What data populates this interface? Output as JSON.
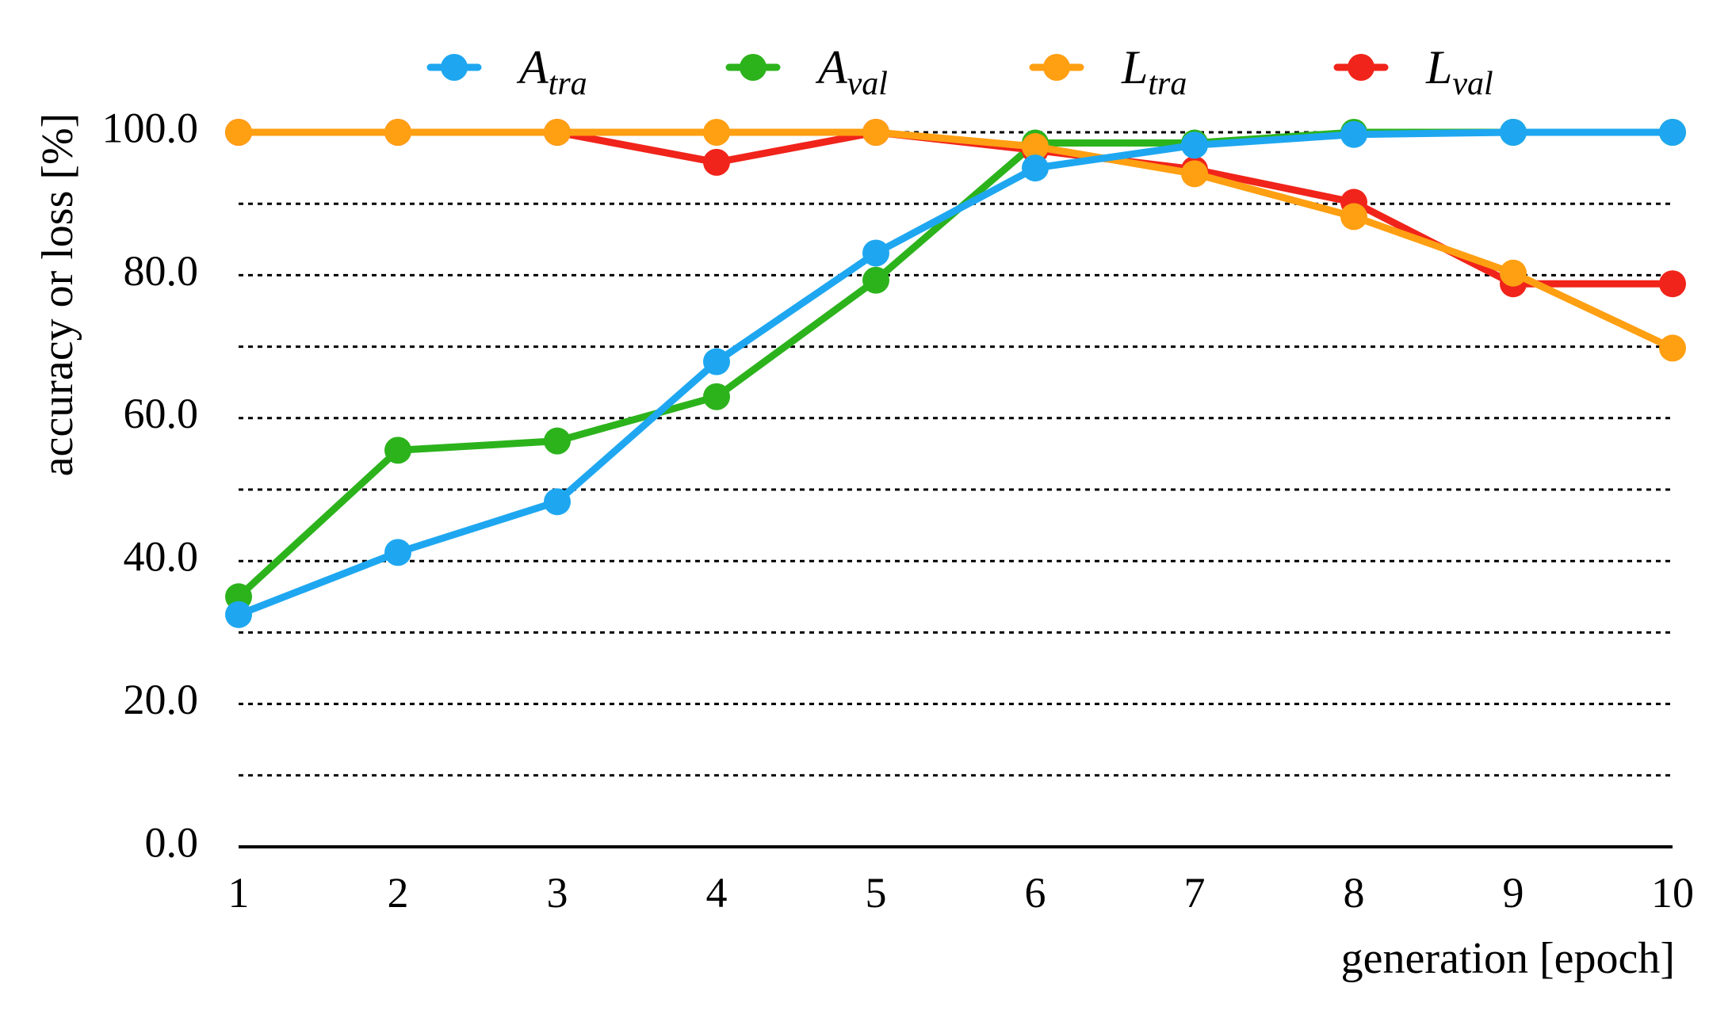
{
  "colors": {
    "A_tra": "#1EA7F0",
    "A_val": "#2CB31C",
    "L_tra": "#FF9F12",
    "L_val": "#F0241A"
  },
  "chart_data": {
    "type": "line",
    "title": "",
    "xlabel": "generation [epoch]",
    "ylabel": "accuracy or loss [%]",
    "categories": [
      "1",
      "2",
      "3",
      "4",
      "5",
      "6",
      "7",
      "8",
      "9",
      "10"
    ],
    "x": [
      1,
      2,
      3,
      4,
      5,
      6,
      7,
      8,
      9,
      10
    ],
    "ylim": [
      0,
      100
    ],
    "yticks": [
      0,
      20,
      40,
      60,
      80,
      100
    ],
    "ytick_labels": [
      "0.0",
      "20.0",
      "40.0",
      "60.0",
      "80.0",
      "100.0"
    ],
    "grid": true,
    "legend_position": "top",
    "series": [
      {
        "key": "A_val",
        "name_main": "A",
        "name_sub": "val",
        "values": [
          35.0,
          55.5,
          56.8,
          63.0,
          79.3,
          98.5,
          98.5,
          100.0,
          100.0,
          100.0
        ]
      },
      {
        "key": "L_val",
        "name_main": "L",
        "name_sub": "val",
        "values": [
          100.0,
          100.0,
          100.0,
          95.8,
          100.0,
          97.5,
          94.8,
          90.2,
          78.8,
          78.8
        ]
      },
      {
        "key": "L_tra",
        "name_main": "L",
        "name_sub": "tra",
        "values": [
          100.0,
          100.0,
          100.0,
          100.0,
          100.0,
          98.0,
          94.2,
          88.2,
          80.3,
          69.8
        ]
      },
      {
        "key": "A_tra",
        "name_main": "A",
        "name_sub": "tra",
        "values": [
          32.5,
          41.2,
          48.3,
          67.9,
          83.1,
          95.0,
          98.2,
          99.7,
          100.0,
          100.0
        ]
      }
    ],
    "legend_order": [
      "A_tra",
      "A_val",
      "L_tra",
      "L_val"
    ]
  }
}
